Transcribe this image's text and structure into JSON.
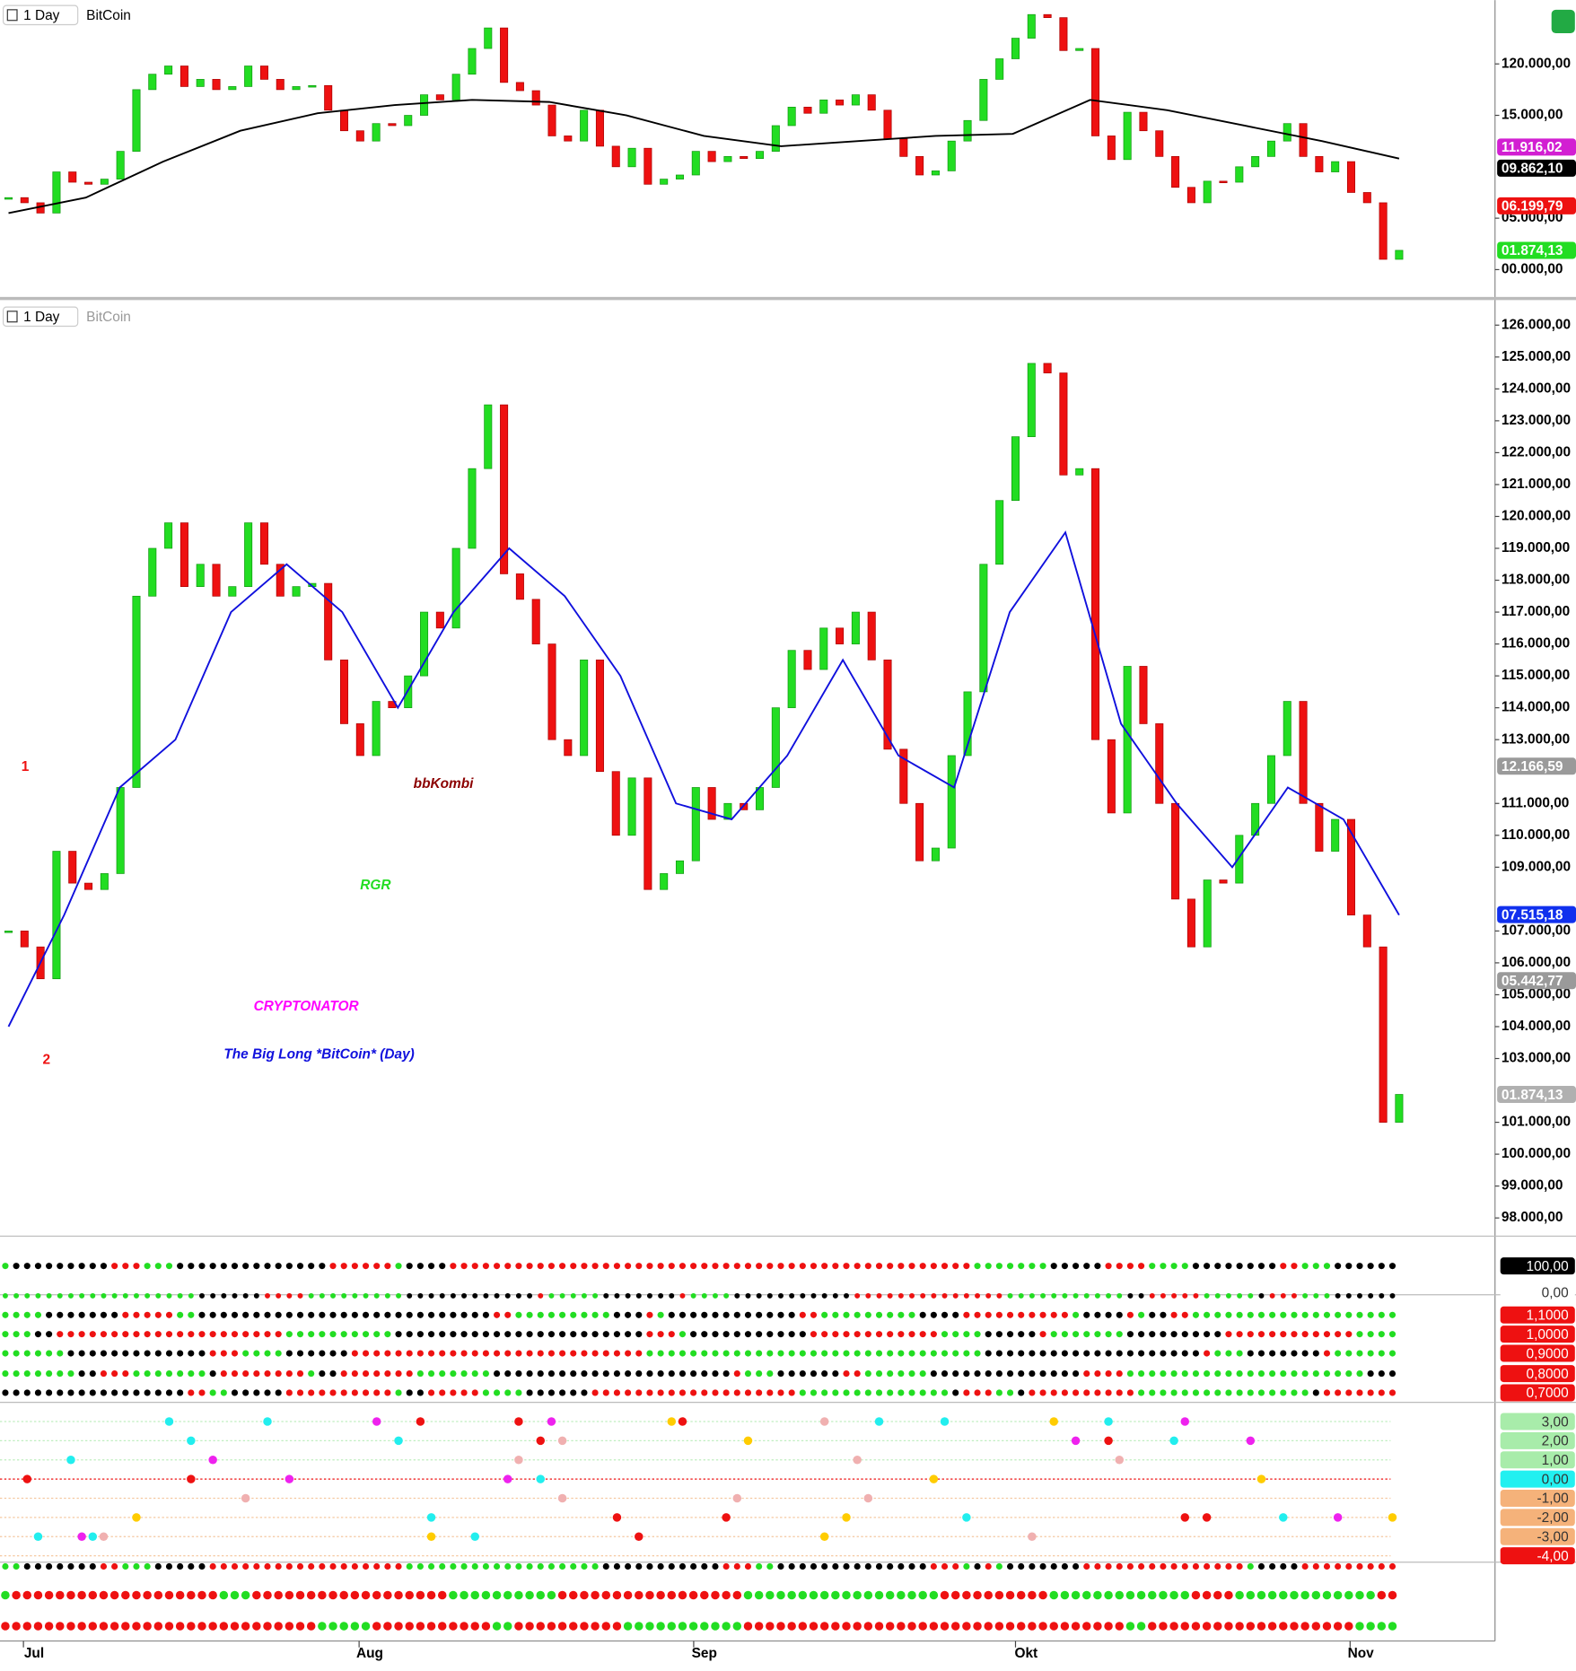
{
  "header": {
    "top_interval": "1 Day",
    "top_symbol": "BitCoin",
    "main_interval": "1 Day",
    "main_symbol": "BitCoin"
  },
  "chart_data": [
    {
      "type": "candlestick",
      "values": [
        107000,
        106500,
        105500,
        109500,
        108500,
        108300,
        108800,
        111500,
        117500,
        119000,
        119800,
        117800,
        118500,
        117500,
        117800,
        119800,
        118500,
        117500,
        117800,
        117900,
        115500,
        113500,
        112500,
        114200,
        114000,
        115000,
        117000,
        116500,
        119000,
        121500,
        123500,
        118200,
        117400,
        116000,
        113000,
        112500,
        115500,
        112000,
        110000,
        111800,
        108300,
        108800,
        109200,
        111500,
        110500,
        111000,
        110800,
        111500,
        114000,
        115800,
        115200,
        116500,
        116000,
        117000,
        115500,
        112700,
        111000,
        109200,
        109600,
        112500,
        114500,
        118500,
        120500,
        122500,
        124800,
        124500,
        121300,
        121500,
        113000,
        110700,
        115300,
        113500,
        111000,
        108000,
        106500,
        108600,
        108500,
        110000,
        111000,
        112500,
        114200,
        111000,
        109500,
        110500,
        107500,
        106500,
        101000,
        101874.13
      ],
      "ylim": [
        97400,
        126200
      ],
      "yticks": [
        {
          "value": 100000,
          "label": "00.000,00"
        },
        {
          "value": 105000,
          "label": "05.000,00"
        },
        {
          "value": 115000,
          "label": "15.000,00"
        },
        {
          "value": 120000,
          "label": "120.000,00"
        }
      ],
      "lines": [
        {
          "color": "#000000",
          "values": [
            105500,
            107000,
            110500,
            113500,
            115200,
            116000,
            116500,
            116300,
            115000,
            113000,
            112000,
            112500,
            113000,
            113200,
            116500,
            115500,
            114000,
            112500,
            110800
          ]
        }
      ],
      "price_labels": [
        {
          "value": 111916.02,
          "label": "11.916,02",
          "color": "#d21fd2"
        },
        {
          "value": 109862.1,
          "label": "09.862,10",
          "color": "#000000"
        },
        {
          "value": 106199.79,
          "label": "06.199,79",
          "color": "#ee1111"
        },
        {
          "value": 101874.13,
          "label": "01.874,13",
          "color": "#22dd22"
        }
      ]
    },
    {
      "type": "candlestick",
      "values": [
        107000,
        106500,
        105500,
        109500,
        108500,
        108300,
        108800,
        111500,
        117500,
        119000,
        119800,
        117800,
        118500,
        117500,
        117800,
        119800,
        118500,
        117500,
        117800,
        117900,
        115500,
        113500,
        112500,
        114200,
        114000,
        115000,
        117000,
        116500,
        119000,
        121500,
        123500,
        118200,
        117400,
        116000,
        113000,
        112500,
        115500,
        112000,
        110000,
        111800,
        108300,
        108800,
        109200,
        111500,
        110500,
        111000,
        110800,
        111500,
        114000,
        115800,
        115200,
        116500,
        116000,
        117000,
        115500,
        112700,
        111000,
        109200,
        109600,
        112500,
        114500,
        118500,
        120500,
        122500,
        124800,
        124500,
        121300,
        121500,
        113000,
        110700,
        115300,
        113500,
        111000,
        108000,
        106500,
        108600,
        108500,
        110000,
        111000,
        112500,
        114200,
        111000,
        109500,
        110500,
        107500,
        106500,
        101000,
        101874.13
      ],
      "ylim": [
        97430,
        126735
      ],
      "yticks": [
        {
          "value": 98000,
          "label": "98.000,00"
        },
        {
          "value": 99000,
          "label": "99.000,00"
        },
        {
          "value": 100000,
          "label": "100.000,00"
        },
        {
          "value": 101000,
          "label": "101.000,00"
        },
        {
          "value": 103000,
          "label": "103.000,00"
        },
        {
          "value": 104000,
          "label": "104.000,00"
        },
        {
          "value": 105000,
          "label": "105.000,00"
        },
        {
          "value": 106000,
          "label": "106.000,00"
        },
        {
          "value": 107000,
          "label": "107.000,00"
        },
        {
          "value": 109000,
          "label": "109.000,00"
        },
        {
          "value": 110000,
          "label": "110.000,00"
        },
        {
          "value": 111000,
          "label": "111.000,00"
        },
        {
          "value": 113000,
          "label": "113.000,00"
        },
        {
          "value": 114000,
          "label": "114.000,00"
        },
        {
          "value": 115000,
          "label": "115.000,00"
        },
        {
          "value": 116000,
          "label": "116.000,00"
        },
        {
          "value": 117000,
          "label": "117.000,00"
        },
        {
          "value": 118000,
          "label": "118.000,00"
        },
        {
          "value": 119000,
          "label": "119.000,00"
        },
        {
          "value": 120000,
          "label": "120.000,00"
        },
        {
          "value": 121000,
          "label": "121.000,00"
        },
        {
          "value": 122000,
          "label": "122.000,00"
        },
        {
          "value": 123000,
          "label": "123.000,00"
        },
        {
          "value": 124000,
          "label": "124.000,00"
        },
        {
          "value": 125000,
          "label": "125.000,00"
        },
        {
          "value": 126000,
          "label": "126.000,00"
        }
      ],
      "lines": [
        {
          "color": "#1010dd",
          "values": [
            104000,
            107500,
            111500,
            113000,
            117000,
            118500,
            117000,
            114000,
            117000,
            119000,
            117500,
            115000,
            111000,
            110500,
            112500,
            115500,
            112500,
            111500,
            117000,
            119500,
            113500,
            111000,
            109000,
            111500,
            110500,
            107500
          ]
        }
      ],
      "price_labels": [
        {
          "value": 112166.59,
          "label": "12.166,59",
          "color": "#9a9a9a"
        },
        {
          "value": 107515.18,
          "label": "07.515,18",
          "color": "#1030ee"
        },
        {
          "value": 105442.77,
          "label": "05.442,77",
          "color": "#9a9a9a"
        },
        {
          "value": 101874.13,
          "label": "01.874,13",
          "color": "#b0b0b0"
        }
      ],
      "annotations": [
        {
          "text": "1",
          "color": "#ee1111"
        },
        {
          "text": "2",
          "color": "#ee1111"
        },
        {
          "text": "bbKombi",
          "color": "#8b0000"
        },
        {
          "text": "RGR",
          "color": "#22dd22"
        },
        {
          "text": "CRYPTONATOR",
          "color": "#ff00ff"
        },
        {
          "text": "The Big Long *BitCoin* (Day)",
          "color": "#1010dd"
        }
      ]
    }
  ],
  "indicators": {
    "labels": [
      {
        "text": "100,00",
        "color": "#000000"
      },
      {
        "text": "0,00",
        "color": "#ffffff"
      },
      {
        "text": "1,1000",
        "color": "#ee1111"
      },
      {
        "text": "1,0000",
        "color": "#ee1111"
      },
      {
        "text": "0,9000",
        "color": "#ee1111"
      },
      {
        "text": "0,8000",
        "color": "#ee1111"
      },
      {
        "text": "0,7000",
        "color": "#ee1111"
      },
      {
        "text": "3,00",
        "color": "#a8ecaa"
      },
      {
        "text": "2,00",
        "color": "#a8ecaa"
      },
      {
        "text": "1,00",
        "color": "#a8ecaa"
      },
      {
        "text": "0,00",
        "color": "#22f0f0"
      },
      {
        "text": "-1,00",
        "color": "#f5b27a"
      },
      {
        "text": "-2,00",
        "color": "#f5b27a"
      },
      {
        "text": "-3,00",
        "color": "#f5b27a"
      },
      {
        "text": "-4,00",
        "color": "#ee1111"
      }
    ]
  },
  "x_axis": {
    "months": [
      "Jul",
      "Aug",
      "Sep",
      "Okt",
      "Nov"
    ]
  }
}
